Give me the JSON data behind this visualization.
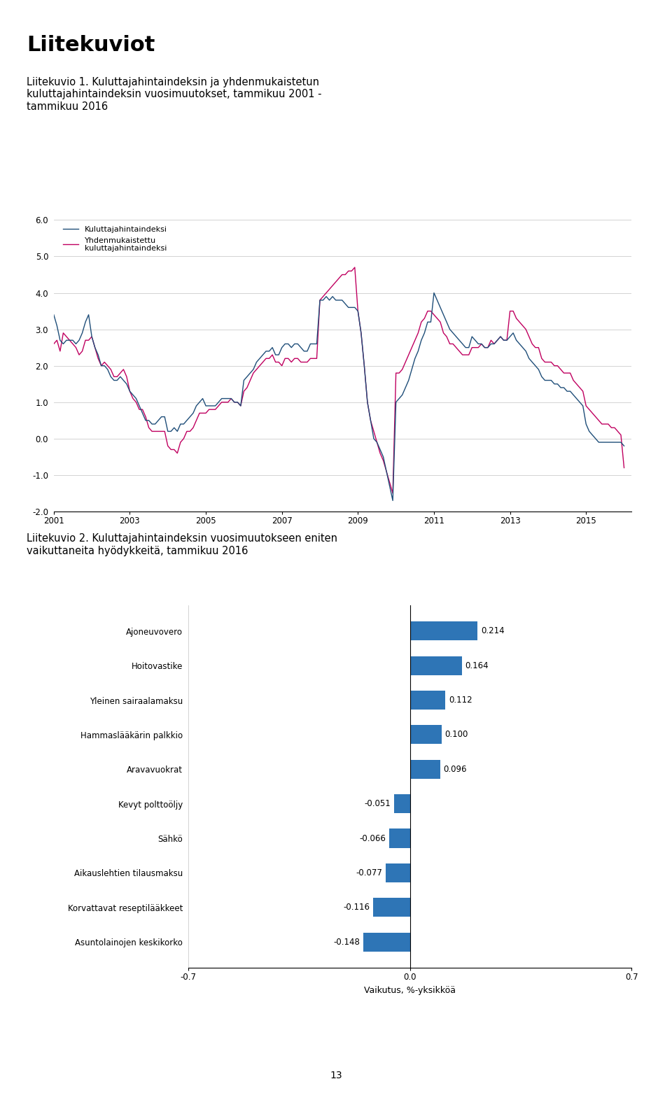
{
  "title_main": "Liitekuviot",
  "fig1_title": "Liitekuvio 1. Kuluttajahintaindeksin ja yhdenmukaistetun\nkuluttajahintaindeksin vuosimuutokset, tammikuu 2001 -\ntammikuu 2016",
  "fig2_title": "Liitekuvio 2. Kuluttajahintaindeksin vuosimuutokseen eniten\nvaikuttaneita hyödykkeitä, tammikuu 2016",
  "line1_label": "Kuluttajahintaindeksi",
  "line2_label": "Yhdenmukaistettu\nkuluttajahintaindeksi",
  "line1_color": "#1f4e79",
  "line2_color": "#c00060",
  "ylim_line": [
    -2.0,
    6.0
  ],
  "yticks_line": [
    -2.0,
    -1.0,
    0.0,
    1.0,
    2.0,
    3.0,
    4.0,
    5.0,
    6.0
  ],
  "xticks_line": [
    2001,
    2003,
    2005,
    2007,
    2009,
    2011,
    2013,
    2015
  ],
  "bar_categories": [
    "Ajoneuvovero",
    "Hoitovastike",
    "Yleinen sairaalamaksu",
    "Hammaslääkärin palkkio",
    "Aravavuokrat",
    "Kevyt polttoöljy",
    "Sähkö",
    "Aikauslehtien tilausmaksu",
    "Korvattavat reseptilääkkeet",
    "Asuntolainojen keskikorko"
  ],
  "bar_values": [
    0.214,
    0.164,
    0.112,
    0.1,
    0.096,
    -0.051,
    -0.066,
    -0.077,
    -0.116,
    -0.148
  ],
  "bar_color": "#2e75b6",
  "bar_xlabel": "Vaikutus, %-yksikköä",
  "bar_xlim": [
    -0.7,
    0.7
  ],
  "bar_xticks": [
    -0.7,
    0.0,
    0.7
  ],
  "background_color": "#ffffff",
  "page_number": "13",
  "khi_monthly": [
    3.4,
    3.1,
    2.7,
    2.6,
    2.7,
    2.7,
    2.7,
    2.6,
    2.7,
    2.9,
    3.2,
    3.4,
    2.8,
    2.5,
    2.3,
    2.0,
    2.0,
    1.9,
    1.7,
    1.6,
    1.6,
    1.7,
    1.6,
    1.5,
    1.3,
    1.2,
    1.1,
    0.9,
    0.7,
    0.5,
    0.5,
    0.4,
    0.4,
    0.5,
    0.6,
    0.6,
    0.2,
    0.2,
    0.3,
    0.2,
    0.4,
    0.4,
    0.5,
    0.6,
    0.7,
    0.9,
    1.0,
    1.1,
    0.9,
    0.9,
    0.9,
    0.9,
    1.0,
    1.1,
    1.1,
    1.1,
    1.1,
    1.0,
    1.0,
    0.9,
    1.6,
    1.7,
    1.8,
    1.9,
    2.1,
    2.2,
    2.3,
    2.4,
    2.4,
    2.5,
    2.3,
    2.3,
    2.5,
    2.6,
    2.6,
    2.5,
    2.6,
    2.6,
    2.5,
    2.4,
    2.4,
    2.6,
    2.6,
    2.6,
    3.8,
    3.8,
    3.9,
    3.8,
    3.9,
    3.8,
    3.8,
    3.8,
    3.7,
    3.6,
    3.6,
    3.6,
    3.5,
    2.9,
    2.0,
    1.0,
    0.5,
    0.0,
    -0.1,
    -0.3,
    -0.5,
    -0.9,
    -1.3,
    -1.7,
    1.0,
    1.1,
    1.2,
    1.4,
    1.6,
    1.9,
    2.2,
    2.4,
    2.7,
    2.9,
    3.2,
    3.2,
    4.0,
    3.8,
    3.6,
    3.4,
    3.2,
    3.0,
    2.9,
    2.8,
    2.7,
    2.6,
    2.5,
    2.5,
    2.8,
    2.7,
    2.6,
    2.6,
    2.5,
    2.5,
    2.6,
    2.6,
    2.7,
    2.8,
    2.7,
    2.7,
    2.8,
    2.9,
    2.7,
    2.6,
    2.5,
    2.4,
    2.2,
    2.1,
    2.0,
    1.9,
    1.7,
    1.6,
    1.6,
    1.6,
    1.5,
    1.5,
    1.4,
    1.4,
    1.3,
    1.3,
    1.2,
    1.1,
    1.0,
    0.9,
    0.4,
    0.2,
    0.1,
    0.0,
    -0.1,
    -0.1,
    -0.1,
    -0.1,
    -0.1,
    -0.1,
    -0.1,
    -0.1,
    -0.2
  ],
  "hicp_monthly": [
    2.6,
    2.7,
    2.4,
    2.9,
    2.8,
    2.7,
    2.6,
    2.5,
    2.3,
    2.4,
    2.7,
    2.7,
    2.8,
    2.5,
    2.2,
    2.0,
    2.1,
    2.0,
    1.9,
    1.7,
    1.7,
    1.8,
    1.9,
    1.7,
    1.3,
    1.1,
    1.0,
    0.8,
    0.8,
    0.6,
    0.3,
    0.2,
    0.2,
    0.2,
    0.2,
    0.2,
    -0.2,
    -0.3,
    -0.3,
    -0.4,
    -0.1,
    0.0,
    0.2,
    0.2,
    0.3,
    0.5,
    0.7,
    0.7,
    0.7,
    0.8,
    0.8,
    0.8,
    0.9,
    1.0,
    1.0,
    1.0,
    1.1,
    1.0,
    1.0,
    0.9,
    1.3,
    1.4,
    1.6,
    1.8,
    1.9,
    2.0,
    2.1,
    2.2,
    2.2,
    2.3,
    2.1,
    2.1,
    2.0,
    2.2,
    2.2,
    2.1,
    2.2,
    2.2,
    2.1,
    2.1,
    2.1,
    2.2,
    2.2,
    2.2,
    3.8,
    3.9,
    4.0,
    4.1,
    4.2,
    4.3,
    4.4,
    4.5,
    4.5,
    4.6,
    4.6,
    4.7,
    3.5,
    2.9,
    2.0,
    1.0,
    0.5,
    0.2,
    -0.1,
    -0.4,
    -0.6,
    -0.9,
    -1.2,
    -1.5,
    1.8,
    1.8,
    1.9,
    2.1,
    2.3,
    2.5,
    2.7,
    2.9,
    3.2,
    3.3,
    3.5,
    3.5,
    3.4,
    3.3,
    3.2,
    2.9,
    2.8,
    2.6,
    2.6,
    2.5,
    2.4,
    2.3,
    2.3,
    2.3,
    2.5,
    2.5,
    2.5,
    2.6,
    2.5,
    2.5,
    2.7,
    2.6,
    2.7,
    2.8,
    2.7,
    2.7,
    3.5,
    3.5,
    3.3,
    3.2,
    3.1,
    3.0,
    2.8,
    2.6,
    2.5,
    2.5,
    2.2,
    2.1,
    2.1,
    2.1,
    2.0,
    2.0,
    1.9,
    1.8,
    1.8,
    1.8,
    1.6,
    1.5,
    1.4,
    1.3,
    0.9,
    0.8,
    0.7,
    0.6,
    0.5,
    0.4,
    0.4,
    0.4,
    0.3,
    0.3,
    0.2,
    0.1,
    -0.8
  ]
}
